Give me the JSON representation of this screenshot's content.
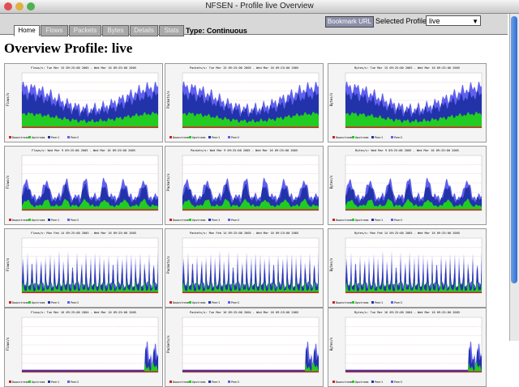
{
  "window": {
    "title": "NFSEN - Profile live Overview"
  },
  "tabs": [
    "Home",
    "Flows",
    "Packets",
    "Bytes",
    "Details",
    "Stats"
  ],
  "type_label": "Type: Continuous",
  "bookmark": "Bookmark URL",
  "profile_label": "Selected Profile:",
  "profile_value": "live",
  "heading": "Overview Profile: live",
  "legend": [
    "Downstream",
    "Upstream",
    "Peer1",
    "Peer2"
  ],
  "panels": [
    [
      {
        "title": "Flows/s: Tue Mar 15 09:25:00 2005 - Wed Mar 16 09:25:00 2005",
        "ylabel": "Flows/s"
      },
      {
        "title": "Packets/s: Tue Mar 15 09:25:00 2005 - Wed Mar 16 09:25:00 2005",
        "ylabel": "Packets/s"
      },
      {
        "title": "Bytes/s: Tue Mar 15 09:25:00 2005 - Wed Mar 16 09:25:00 2005",
        "ylabel": "Bytes/s"
      }
    ],
    [
      {
        "title": "Flows/s: Wed Mar 9 09:25:00 2005 - Wed Mar 16 09:25:00 2005",
        "ylabel": "Flows/s"
      },
      {
        "title": "Packets/s: Wed Mar 9 09:25:00 2005 - Wed Mar 16 09:25:00 2005",
        "ylabel": "Packets/s"
      },
      {
        "title": "Bytes/s: Wed Mar 9 09:25:00 2005 - Wed Mar 16 09:25:00 2005",
        "ylabel": "Bytes/s"
      }
    ],
    [
      {
        "title": "Flows/s: Mon Feb 14 09:25:00 2005 - Wed Mar 16 09:25:00 2005",
        "ylabel": "Flows/s"
      },
      {
        "title": "Packets/s: Mon Feb 14 09:25:00 2005 - Wed Mar 16 09:25:00 2005",
        "ylabel": "Packets/s"
      },
      {
        "title": "Bytes/s: Mon Feb 14 09:25:00 2005 - Wed Mar 16 09:25:00 2005",
        "ylabel": "Bytes/s"
      }
    ],
    [
      {
        "title": "Flows/s: Tue Mar 16 09:25:00 2004 - Wed Mar 16 09:25:00 2005",
        "ylabel": "Flows/s"
      },
      {
        "title": "Packets/s: Tue Mar 16 09:25:00 2004 - Wed Mar 16 09:25:00 2005",
        "ylabel": "Packets/s"
      },
      {
        "title": "Bytes/s: Tue Mar 16 09:25:00 2004 - Wed Mar 16 09:25:00 2005",
        "ylabel": "Bytes/s"
      }
    ]
  ]
}
